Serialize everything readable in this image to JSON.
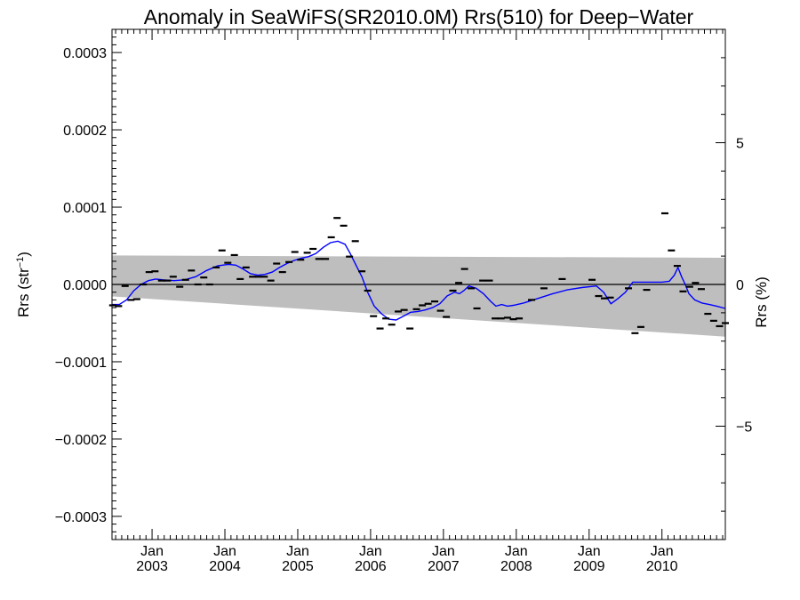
{
  "chart_data": {
    "type": "line",
    "title": "Anomaly in SeaWiFS(SR2010.0M) Rrs(510) for Deep−Water",
    "ylabel_left": {
      "text": "Rrs (str",
      "superscript": "−1",
      "suffix": ")"
    },
    "ylabel_right": "Rrs (%)",
    "xlim": [
      2002.45,
      2010.87
    ],
    "ylim": [
      -0.00033,
      0.00033
    ],
    "y2lim": [
      -9.0,
      9.0
    ],
    "grid": false,
    "yticks_left": [
      {
        "value": 0.0003,
        "label": "0.0003"
      },
      {
        "value": 0.0002,
        "label": "0.0002"
      },
      {
        "value": 0.0001,
        "label": "0.0001"
      },
      {
        "value": 0.0,
        "label": "0.0000"
      },
      {
        "value": -0.0001,
        "label": "−0.0001"
      },
      {
        "value": -0.0002,
        "label": "−0.0002"
      },
      {
        "value": -0.0003,
        "label": "−0.0003"
      }
    ],
    "yticks_right": [
      {
        "value": 5,
        "label": "5"
      },
      {
        "value": 0,
        "label": "0"
      },
      {
        "value": -5,
        "label": "−5"
      }
    ],
    "xticks": [
      {
        "value": 2003.0,
        "month": "Jan",
        "year": "2003"
      },
      {
        "value": 2004.0,
        "month": "Jan",
        "year": "2004"
      },
      {
        "value": 2005.0,
        "month": "Jan",
        "year": "2005"
      },
      {
        "value": 2006.0,
        "month": "Jan",
        "year": "2006"
      },
      {
        "value": 2007.0,
        "month": "Jan",
        "year": "2007"
      },
      {
        "value": 2008.0,
        "month": "Jan",
        "year": "2008"
      },
      {
        "value": 2009.0,
        "month": "Jan",
        "year": "2009"
      },
      {
        "value": 2010.0,
        "month": "Jan",
        "year": "2010"
      }
    ],
    "band": {
      "color": "#bebebe",
      "x": [
        2002.45,
        2010.87
      ],
      "upper": [
        3.75e-05,
        3.45e-05
      ],
      "lower": [
        -1.55e-05,
        -6.75e-05
      ]
    },
    "zero_line": {
      "y": 0.0,
      "color": "#000000"
    },
    "colors": {
      "smooth": "#0000ff",
      "points": "#000000",
      "axes": "#000000",
      "band": "#bebebe"
    },
    "series": [
      {
        "style": "markers",
        "x": [
          2002.46,
          2002.54,
          2002.63,
          2002.71,
          2002.79,
          2002.88,
          2002.96,
          2003.04,
          2003.13,
          2003.21,
          2003.29,
          2003.38,
          2003.46,
          2003.54,
          2003.63,
          2003.71,
          2003.79,
          2003.88,
          2003.96,
          2004.04,
          2004.13,
          2004.21,
          2004.29,
          2004.38,
          2004.46,
          2004.54,
          2004.63,
          2004.71,
          2004.79,
          2004.88,
          2004.96,
          2005.04,
          2005.13,
          2005.21,
          2005.29,
          2005.38,
          2005.46,
          2005.54,
          2005.63,
          2005.71,
          2005.79,
          2005.88,
          2005.96,
          2006.04,
          2006.13,
          2006.21,
          2006.29,
          2006.38,
          2006.46,
          2006.54,
          2006.63,
          2006.71,
          2006.79,
          2006.88,
          2006.96,
          2007.04,
          2007.13,
          2007.21,
          2007.29,
          2007.38,
          2007.46,
          2007.54,
          2007.63,
          2007.71,
          2007.79,
          2007.88,
          2007.96,
          2008.04,
          2008.21,
          2008.38,
          2008.63,
          2009.04,
          2009.13,
          2009.21,
          2009.29,
          2009.54,
          2009.63,
          2009.71,
          2009.79,
          2010.04,
          2010.13,
          2010.21,
          2010.29,
          2010.38,
          2010.46,
          2010.54,
          2010.63,
          2010.71,
          2010.79,
          2010.87
        ],
        "y": [
          -2.7e-05,
          -2.8e-05,
          -2e-06,
          -2e-05,
          -1.9e-05,
          0.0,
          1.6e-05,
          1.7e-05,
          5e-06,
          5e-06,
          1e-05,
          -3e-06,
          6e-06,
          1.8e-05,
          0.0,
          9e-06,
          0.0,
          2.2e-05,
          4.4e-05,
          2.8e-05,
          3.8e-05,
          7e-06,
          2.2e-05,
          1e-05,
          1e-05,
          1e-05,
          5e-06,
          2.7e-05,
          1.6e-05,
          2.9e-05,
          4.2e-05,
          3.2e-05,
          4.1e-05,
          4.6e-05,
          3.3e-05,
          3.3e-05,
          6.1e-05,
          8.6e-05,
          7.6e-05,
          3.6e-05,
          5.6e-05,
          1.7e-05,
          -8e-06,
          -4.1e-05,
          -5.7e-05,
          -4.4e-05,
          -5.2e-05,
          -3.5e-05,
          -3.3e-05,
          -5.7e-05,
          -3.2e-05,
          -2.7e-05,
          -2.5e-05,
          -2.2e-05,
          -3.4e-05,
          -4.2e-05,
          -8e-06,
          2e-06,
          2e-05,
          -5e-06,
          -3.1e-05,
          5e-06,
          5e-06,
          -4.4e-05,
          -4.4e-05,
          -4.3e-05,
          -4.5e-05,
          -4.4e-05,
          -2e-05,
          -5e-06,
          7e-06,
          6e-06,
          -1.5e-05,
          -1.8e-05,
          -1.7e-05,
          -5e-06,
          -6.3e-05,
          -5.5e-05,
          -7e-06,
          9.2e-05,
          4.4e-05,
          2.4e-05,
          -9e-06,
          -3e-06,
          2e-06,
          -6e-06,
          -3.8e-05,
          -4.7e-05,
          -5.4e-05,
          -5e-05
        ]
      },
      {
        "style": "line",
        "x": [
          2002.45,
          2002.55,
          2002.65,
          2002.75,
          2002.85,
          2002.95,
          2003.05,
          2003.15,
          2003.3,
          2003.45,
          2003.6,
          2003.75,
          2003.9,
          2004.05,
          2004.15,
          2004.25,
          2004.35,
          2004.45,
          2004.55,
          2004.65,
          2004.75,
          2004.85,
          2004.95,
          2005.05,
          2005.15,
          2005.25,
          2005.35,
          2005.45,
          2005.55,
          2005.65,
          2005.72,
          2005.8,
          2005.88,
          2005.96,
          2006.05,
          2006.15,
          2006.25,
          2006.35,
          2006.45,
          2006.55,
          2006.65,
          2006.75,
          2006.85,
          2006.95,
          2007.05,
          2007.15,
          2007.22,
          2007.28,
          2007.35,
          2007.45,
          2007.55,
          2007.65,
          2007.72,
          2007.8,
          2007.88,
          2007.96,
          2008.1,
          2008.3,
          2008.5,
          2008.7,
          2008.9,
          2009.1,
          2009.2,
          2009.3,
          2009.4,
          2009.5,
          2009.6,
          2009.7,
          2009.8,
          2009.9,
          2010.0,
          2010.1,
          2010.17,
          2010.22,
          2010.27,
          2010.32,
          2010.37,
          2010.45,
          2010.55,
          2010.65,
          2010.75,
          2010.87
        ],
        "y": [
          -2.6e-05,
          -2.6e-05,
          -2e-05,
          -8e-06,
          0.0,
          5e-06,
          7e-06,
          6e-06,
          5e-06,
          6e-06,
          1e-05,
          1.8e-05,
          2.4e-05,
          2.6e-05,
          2.5e-05,
          2e-05,
          1.4e-05,
          1.2e-05,
          1.3e-05,
          1.6e-05,
          2.2e-05,
          2.7e-05,
          3.1e-05,
          3.4e-05,
          3.6e-05,
          4e-05,
          4.8e-05,
          5.4e-05,
          5.6e-05,
          5.2e-05,
          4e-05,
          2.5e-05,
          1e-05,
          -1e-05,
          -2.8e-05,
          -3.8e-05,
          -4.5e-05,
          -4.6e-05,
          -4.1e-05,
          -3.6e-05,
          -3.5e-05,
          -3.3e-05,
          -3e-05,
          -2.5e-05,
          -1.5e-05,
          -1e-05,
          -1.2e-05,
          -8e-06,
          -2e-06,
          -5e-06,
          -1.2e-05,
          -2.2e-05,
          -2.8e-05,
          -2.6e-05,
          -2.8e-05,
          -2.7e-05,
          -2.4e-05,
          -1.8e-05,
          -1.2e-05,
          -7e-06,
          -4e-06,
          -2e-06,
          -1e-05,
          -2.5e-05,
          -1.8e-05,
          -1e-05,
          3e-06,
          3e-06,
          3e-06,
          3e-06,
          3e-06,
          4e-06,
          1.2e-05,
          2.2e-05,
          1e-05,
          0.0,
          -1.2e-05,
          -2e-05,
          -2.4e-05,
          -2.6e-05,
          -2.8e-05,
          -3.1e-05
        ]
      }
    ]
  }
}
